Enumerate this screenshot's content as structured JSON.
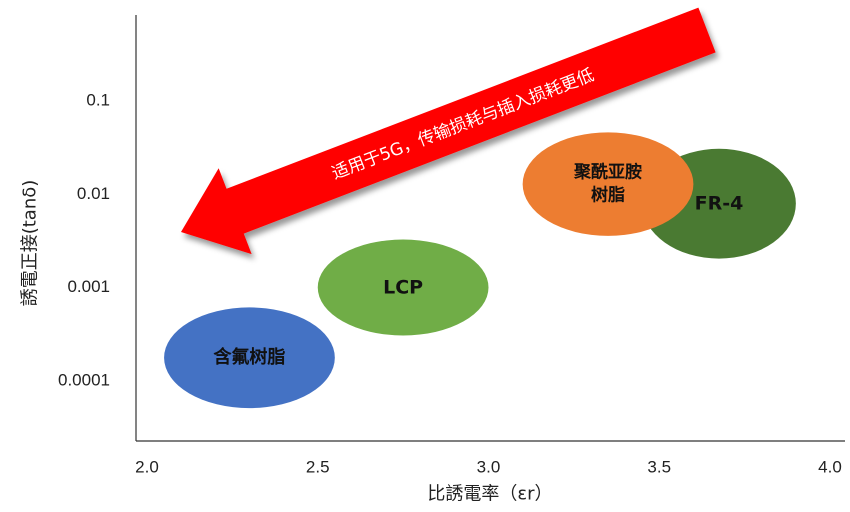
{
  "chart_data": {
    "type": "scatter",
    "x_axis": {
      "label": "比誘電率（εr）",
      "range": [
        2.0,
        4.0
      ],
      "ticks": [
        "2.0",
        "2.5",
        "3.0",
        "3.5",
        "4.0"
      ],
      "tick_values": [
        2.0,
        2.5,
        3.0,
        3.5,
        4.0
      ]
    },
    "y_axis": {
      "label": "誘電正接(tanδ)",
      "scale": "log",
      "range": [
        2e-05,
        0.5
      ],
      "ticks": [
        "0.1",
        "0.01",
        "0.001",
        "0.0001"
      ],
      "tick_values": [
        0.1,
        0.01,
        0.001,
        0.0001
      ]
    },
    "grid": false,
    "series": [
      {
        "name": "FR-4",
        "color": "#4a7a32",
        "dk_range": [
          3.45,
          3.9
        ],
        "df_range": [
          0.002,
          0.03
        ],
        "label_lines": [
          "FR-4"
        ],
        "font_size": 19
      },
      {
        "name": "聚酰亚胺树脂",
        "color": "#ed7d31",
        "dk_range": [
          3.1,
          3.6
        ],
        "df_range": [
          0.0035,
          0.045
        ],
        "label_lines": [
          "聚酰亚胺",
          "树脂"
        ],
        "font_size": 17
      },
      {
        "name": "LCP",
        "color": "#70ad47",
        "dk_range": [
          2.5,
          3.0
        ],
        "df_range": [
          0.0003,
          0.0032
        ],
        "label_lines": [
          "LCP"
        ],
        "font_size": 19
      },
      {
        "name": "含氟树脂",
        "color": "#4472c4",
        "dk_range": [
          2.05,
          2.55
        ],
        "df_range": [
          5e-05,
          0.0006
        ],
        "label_lines": [
          "含氟树脂"
        ],
        "font_size": 18
      }
    ],
    "annotation": {
      "text": "适用于5G，传输损耗与插入损耗更低",
      "color": "#ff0000",
      "direction": "toward-lower-left"
    }
  }
}
